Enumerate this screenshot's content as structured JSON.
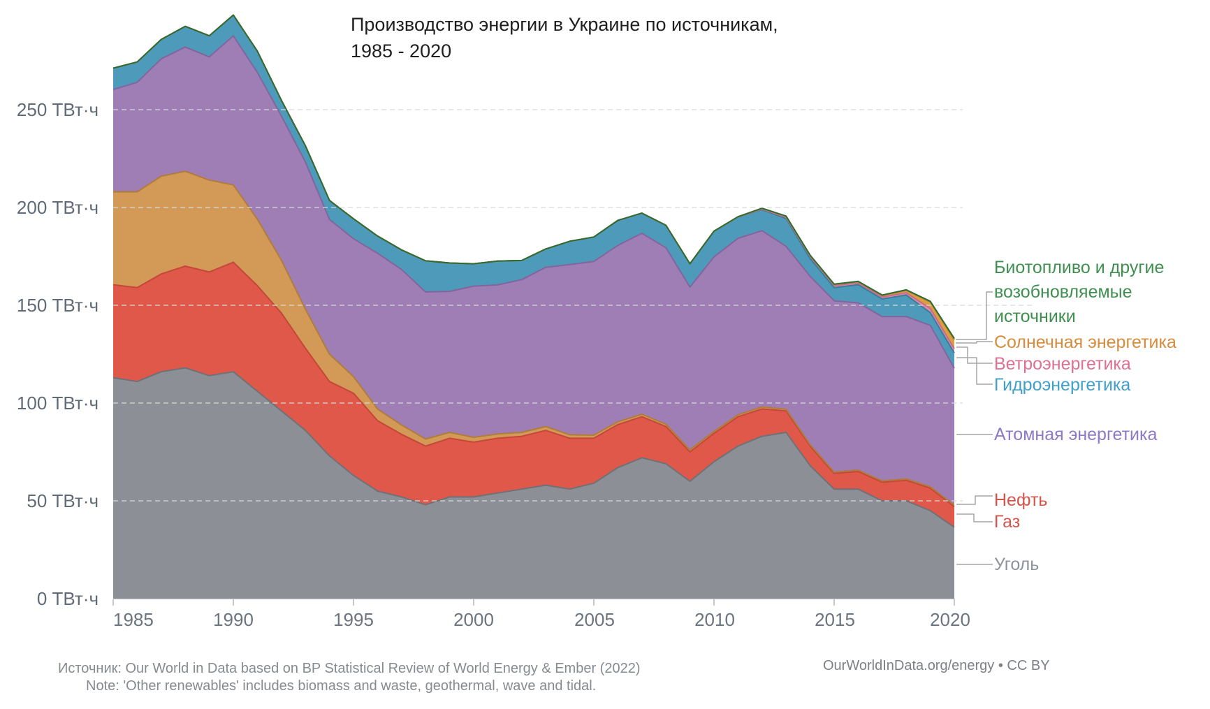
{
  "title": {
    "line1": "Производство энергии в Украине по источникам,",
    "line2": "1985 - 2020"
  },
  "chart_data": {
    "type": "area",
    "stacked": true,
    "title": "Производство энергии в Украине по источникам, 1985 - 2020",
    "xlabel": "",
    "ylabel": "ТВт·ч",
    "xlim": [
      1985,
      2020
    ],
    "ylim": [
      0,
      300
    ],
    "grid": "horizontal-dashed",
    "legend_position": "right",
    "x": [
      1985,
      1986,
      1987,
      1988,
      1989,
      1990,
      1991,
      1992,
      1993,
      1994,
      1995,
      1996,
      1997,
      1998,
      1999,
      2000,
      2001,
      2002,
      2003,
      2004,
      2005,
      2006,
      2007,
      2008,
      2009,
      2010,
      2011,
      2012,
      2013,
      2014,
      2015,
      2016,
      2017,
      2018,
      2019,
      2020
    ],
    "x_ticks": [
      "1985",
      "1990",
      "1995",
      "2000",
      "2005",
      "2010",
      "2015",
      "2020"
    ],
    "y_ticks": [
      {
        "value": 0,
        "label": "0 ТВт·ч"
      },
      {
        "value": 50,
        "label": "50 ТВт·ч"
      },
      {
        "value": 100,
        "label": "100 ТВт·ч"
      },
      {
        "value": 150,
        "label": "150 ТВт·ч"
      },
      {
        "value": 200,
        "label": "200 ТВт·ч"
      },
      {
        "value": 250,
        "label": "250 ТВт·ч"
      }
    ],
    "series": [
      {
        "name": "Уголь",
        "color": "#8c9096",
        "edge": "#6e7176",
        "values": [
          113,
          111,
          116,
          118,
          114,
          116,
          106,
          96,
          86,
          73,
          63,
          55,
          52,
          48,
          52,
          52,
          54,
          56,
          58,
          56,
          59,
          67,
          72,
          69,
          60,
          70,
          78,
          83,
          85,
          68,
          56,
          56,
          50,
          50,
          45,
          36.5
        ]
      },
      {
        "name": "Газ",
        "color": "#e0584a",
        "edge": "#c44739",
        "values": [
          47.5,
          48,
          50,
          52,
          53,
          56,
          54,
          50,
          42,
          38,
          42,
          36,
          32,
          30,
          30,
          28,
          28,
          27,
          28,
          26,
          23,
          22,
          21,
          19,
          15,
          14.5,
          15,
          14,
          11,
          10,
          8,
          9,
          9.5,
          10.5,
          11.5,
          10.5
        ]
      },
      {
        "name": "Нефть",
        "color": "#d29a56",
        "edge": "#b07c3a",
        "values": [
          47.5,
          49,
          50,
          48.5,
          47,
          39.5,
          34,
          27,
          20,
          14,
          8.5,
          6,
          4.8,
          3.6,
          3,
          2.5,
          2.2,
          2,
          2,
          1.8,
          1.6,
          1.4,
          1.3,
          1.2,
          1.1,
          1,
          1,
          1,
          0.9,
          0.8,
          0.7,
          0.7,
          0.7,
          0.7,
          0.7,
          0.8
        ]
      },
      {
        "name": "Атомная энергетика",
        "color": "#9f7eb6",
        "edge": "#83659c",
        "values": [
          52.3,
          56,
          60,
          63.5,
          63,
          76.2,
          75,
          73.7,
          75.2,
          68.9,
          70.5,
          79.6,
          79.5,
          75.2,
          72.1,
          77.3,
          76.2,
          78.1,
          81.4,
          87,
          88.8,
          90.2,
          92.5,
          90.2,
          83.2,
          89.2,
          90.2,
          90.1,
          83.2,
          86,
          87.6,
          85.5,
          84,
          83,
          82.5,
          70
        ]
      },
      {
        "name": "Гидроэнергетика",
        "color": "#4d9abb",
        "edge": "#3a7d99",
        "values": [
          10.9,
          10.4,
          9.9,
          10.6,
          10.8,
          10.7,
          10.9,
          8.1,
          8.3,
          9.7,
          10.2,
          8.8,
          10,
          15.9,
          14.5,
          11.4,
          12.2,
          9.8,
          9.4,
          11.9,
          12.5,
          12.8,
          10.3,
          11.5,
          11.9,
          13.1,
          10.9,
          10.8,
          14.2,
          9.1,
          6.7,
          9.3,
          9,
          11,
          6.5,
          7.8
        ]
      },
      {
        "name": "Ветроэнергетика",
        "color": "#e389aa",
        "edge": "#c66e8d",
        "values": [
          0,
          0,
          0,
          0,
          0,
          0,
          0,
          0,
          0,
          0,
          0,
          0,
          0,
          0,
          0,
          0,
          0,
          0,
          0,
          0,
          0,
          0,
          0,
          0,
          0,
          0.05,
          0.09,
          0.29,
          0.64,
          1.13,
          1.13,
          0.9,
          1,
          1.2,
          2.2,
          2.2
        ]
      },
      {
        "name": "Солнечная энергетика",
        "color": "#dc9f3e",
        "edge": "#b8812c",
        "values": [
          0,
          0,
          0,
          0,
          0,
          0,
          0,
          0,
          0,
          0,
          0,
          0,
          0,
          0,
          0,
          0,
          0,
          0,
          0,
          0,
          0,
          0,
          0,
          0,
          0,
          0,
          0.03,
          0.33,
          0.57,
          0.48,
          0.48,
          0.6,
          0.8,
          1.2,
          3.3,
          4.6
        ]
      },
      {
        "name": "Биотопливо и другие возобновляемые источники",
        "color": "#4a9155",
        "edge": "#2f6b33",
        "values": [
          0,
          0,
          0,
          0,
          0,
          0,
          0,
          0,
          0,
          0,
          0,
          0,
          0,
          0,
          0,
          0,
          0,
          0,
          0,
          0,
          0,
          0,
          0,
          0,
          0,
          0.05,
          0.07,
          0.1,
          0.1,
          0.15,
          0.17,
          0.2,
          0.2,
          0.3,
          0.35,
          0.6
        ]
      }
    ]
  },
  "legend": {
    "items": [
      {
        "id": "other-renewables",
        "color": "#3f9050",
        "lines": [
          "Биотопливо и другие",
          "возобновляемые",
          "источники"
        ]
      },
      {
        "id": "solar",
        "color": "#d68c3c",
        "lines": [
          "Солнечная энергетика"
        ]
      },
      {
        "id": "wind",
        "color": "#df7090",
        "lines": [
          "Ветроэнергетика"
        ]
      },
      {
        "id": "hydro",
        "color": "#3f9fca",
        "lines": [
          "Гидроэнергетика"
        ]
      },
      {
        "id": "nuclear",
        "color": "#8e79c6",
        "lines": [
          "Атомная энергетика"
        ]
      },
      {
        "id": "oil",
        "color": "#d5544a",
        "lines": [
          "Нефть"
        ]
      },
      {
        "id": "gas",
        "color": "#d5544a",
        "lines": [
          "Газ"
        ]
      },
      {
        "id": "coal",
        "color": "#8e949b",
        "lines": [
          "Уголь"
        ]
      }
    ]
  },
  "footer": {
    "source": "Источник: Our World in Data based on BP Statistical Review of World Energy & Ember (2022)",
    "note": "Note: 'Other renewables' includes biomass and waste, geothermal, wave and tidal.",
    "link": "OurWorldInData.org/energy • CC BY"
  }
}
